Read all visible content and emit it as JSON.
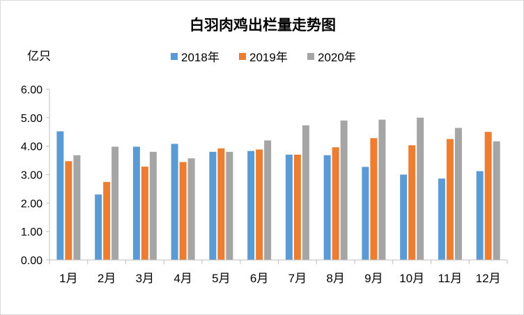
{
  "chart_data": {
    "type": "bar",
    "title": "白羽肉鸡出栏量走势图",
    "ylabel": "亿只",
    "xlabel": "",
    "categories": [
      "1月",
      "2月",
      "3月",
      "4月",
      "5月",
      "6月",
      "7月",
      "8月",
      "9月",
      "10月",
      "11月",
      "12月"
    ],
    "series": [
      {
        "name": "2018年",
        "color": "#5b9bd5",
        "values": [
          4.52,
          2.3,
          3.98,
          4.08,
          3.8,
          3.83,
          3.7,
          3.68,
          3.27,
          3.0,
          2.86,
          3.12
        ]
      },
      {
        "name": "2019年",
        "color": "#ed7d31",
        "values": [
          3.47,
          2.74,
          3.28,
          3.44,
          3.92,
          3.88,
          3.7,
          3.96,
          4.28,
          4.03,
          4.25,
          4.5
        ]
      },
      {
        "name": "2020年",
        "color": "#a5a5a5",
        "values": [
          3.68,
          3.98,
          3.8,
          3.57,
          3.8,
          4.2,
          4.73,
          4.9,
          4.93,
          5.0,
          4.64,
          4.17
        ]
      }
    ],
    "ylim": [
      0,
      6
    ],
    "yticks": [
      "0.00",
      "1.00",
      "2.00",
      "3.00",
      "4.00",
      "5.00",
      "6.00"
    ],
    "grid": false,
    "legend_position": "top-center"
  }
}
